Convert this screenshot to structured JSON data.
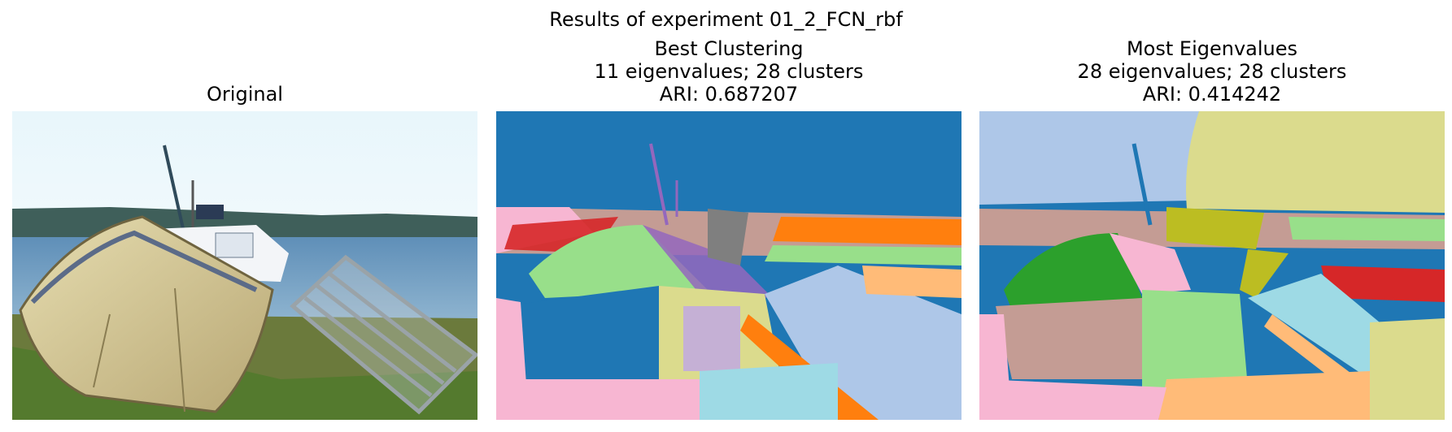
{
  "figure": {
    "suptitle": "Results of experiment 01_2_FCN_rbf"
  },
  "panels": [
    {
      "title_lines": [
        "Original"
      ]
    },
    {
      "title_lines": [
        "Best Clustering",
        "11 eigenvalues; 28 clusters",
        "ARI: 0.687207"
      ]
    },
    {
      "title_lines": [
        "Most Eigenvalues",
        "28 eigenvalues; 28 clusters",
        "ARI: 0.414242"
      ]
    }
  ],
  "colors": {
    "tab_blue": "#1f77b4",
    "tab_orange": "#ff7f0e",
    "tab_green": "#2ca02c",
    "tab_red": "#d62728",
    "tab_purple": "#9467bd",
    "tab_pink": "#f7b6d2",
    "tab_lightgreen": "#98df8a",
    "tab_lightblue": "#aec7e8",
    "tab_khaki": "#dbdb8d",
    "tab_olive": "#bcbd22",
    "tab_brown": "#c49c94",
    "tab_gray": "#7f7f7f",
    "tab_cyan": "#17becf",
    "tab_lightcyan": "#9edae5",
    "tab_peach": "#ffbb78",
    "tab_lavender": "#c5b0d5"
  }
}
